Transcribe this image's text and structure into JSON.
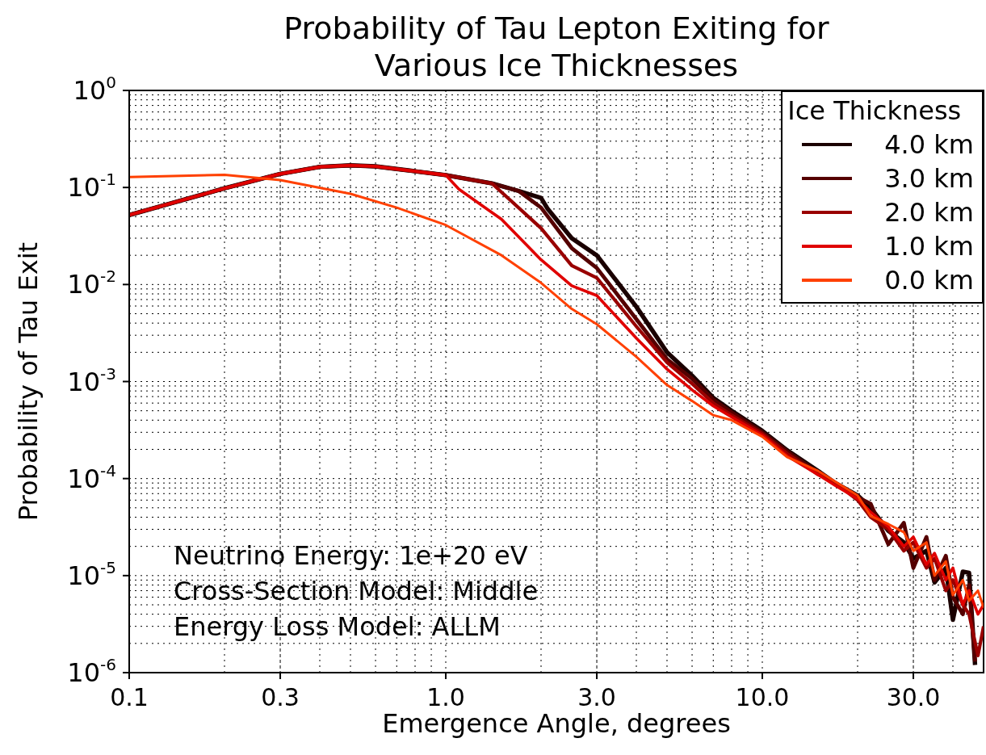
{
  "chart_data": {
    "type": "line",
    "title": "Probability of Tau Lepton Exiting for\nVarious Ice Thicknesses",
    "xlabel": "Emergence Angle, degrees",
    "ylabel": "Probability of Tau Exit",
    "legend_title": "Ice Thickness",
    "log": "xy",
    "grid": true,
    "legend": "top right",
    "line_style": "solid",
    "marker": "none",
    "xlim": [
      0.1,
      50
    ],
    "xticks": [
      {
        "value": 0.1,
        "label": "0.1"
      },
      {
        "value": 0.3,
        "label": "0.3"
      },
      {
        "value": 1,
        "label": "1.0"
      },
      {
        "value": 3,
        "label": "3.0"
      },
      {
        "value": 10,
        "label": "10.0"
      },
      {
        "value": 30,
        "label": "30.0"
      }
    ],
    "ylim": [
      1e-06,
      1
    ],
    "yticks": [
      {
        "value": 1,
        "label": "10$^{0}$"
      },
      {
        "value": 0.1,
        "label": "10$^{-1}$"
      },
      {
        "value": 0.01,
        "label": "10$^{-2}$"
      },
      {
        "value": 0.001,
        "label": "10$^{-3}$"
      },
      {
        "value": 0.0001,
        "label": "10$^{-4}$"
      },
      {
        "value": 1e-05,
        "label": "10$^{-5}$"
      },
      {
        "value": 1e-06,
        "label": "10$^{-6}$"
      }
    ],
    "annotations": [
      "Neutrino Energy: 1e+20 eV",
      "Cross-Section Model: Middle",
      "Energy Loss Model: ALLM"
    ],
    "series": [
      {
        "name": "4.0 km",
        "color": "#1a0000",
        "x": [
          0.1,
          0.2,
          0.3,
          0.4,
          0.5,
          0.6,
          0.7,
          0.8,
          0.9,
          1.0,
          1.4,
          1.7,
          2.0,
          2.1,
          2.5,
          3,
          4,
          5,
          6,
          7,
          8,
          10,
          12,
          15,
          17,
          20,
          22,
          25,
          28,
          30,
          33,
          35,
          38,
          40,
          43,
          45,
          47
        ],
        "values": [
          0.052,
          0.098,
          0.138,
          0.163,
          0.169,
          0.165,
          0.155,
          0.147,
          0.14,
          0.134,
          0.11,
          0.092,
          0.078,
          0.06,
          0.03,
          0.02,
          0.0059,
          0.002,
          0.00115,
          0.00068,
          0.0005,
          0.00031,
          0.000195,
          0.00012,
          9e-05,
          6.7e-05,
          5e-05,
          2.9e-05,
          2.2e-05,
          1.5e-05,
          1.8e-05,
          8.5e-06,
          1.2e-05,
          3.5e-06,
          1.1e-05,
          1.07e-05,
          1.2e-06
        ]
      },
      {
        "name": "3.0 km",
        "color": "#550000",
        "x": [
          0.1,
          0.2,
          0.3,
          0.4,
          0.5,
          0.6,
          0.7,
          0.8,
          0.9,
          1.0,
          1.4,
          1.7,
          2.0,
          2.5,
          3,
          4,
          5,
          6,
          7,
          8,
          10,
          12,
          15,
          17,
          20,
          22,
          25,
          28,
          30,
          33,
          35,
          38,
          40,
          43,
          45,
          47
        ],
        "values": [
          0.052,
          0.098,
          0.138,
          0.163,
          0.169,
          0.165,
          0.155,
          0.147,
          0.14,
          0.134,
          0.11,
          0.092,
          0.062,
          0.0237,
          0.0148,
          0.0044,
          0.0017,
          0.00107,
          0.00065,
          0.00048,
          0.0003,
          0.00019,
          0.000115,
          8.8e-05,
          6.4e-05,
          5.5e-05,
          2.1e-05,
          3.5e-05,
          1.2e-05,
          2.5e-05,
          9e-06,
          1.6e-05,
          6e-06,
          4e-06,
          8e-06,
          1.3e-06
        ]
      },
      {
        "name": "2.0 km",
        "color": "#990000",
        "x": [
          0.1,
          0.2,
          0.3,
          0.4,
          0.5,
          0.6,
          0.7,
          0.8,
          0.9,
          1.0,
          1.4,
          2.0,
          2.5,
          3,
          4,
          5,
          6,
          7,
          8,
          10,
          12,
          15,
          17,
          20,
          22,
          25,
          28,
          30,
          33,
          35,
          38,
          40,
          43,
          45,
          48,
          50
        ],
        "values": [
          0.052,
          0.098,
          0.138,
          0.163,
          0.169,
          0.165,
          0.155,
          0.147,
          0.14,
          0.134,
          0.11,
          0.038,
          0.0157,
          0.0117,
          0.0037,
          0.00157,
          0.00095,
          0.0006,
          0.00045,
          0.00029,
          0.00018,
          0.00011,
          9e-05,
          6e-05,
          4e-05,
          3e-05,
          1.8e-05,
          2.2e-05,
          1.2e-05,
          1.5e-05,
          7e-06,
          9e-06,
          5e-06,
          4e-06,
          1.5e-06,
          3e-06
        ]
      },
      {
        "name": "1.0 km",
        "color": "#e00000",
        "x": [
          0.1,
          0.2,
          0.3,
          0.4,
          0.5,
          0.6,
          0.7,
          0.8,
          0.9,
          1.0,
          1.1,
          1.5,
          2.0,
          2.5,
          3,
          4,
          5,
          6,
          7,
          8,
          10,
          12,
          15,
          17,
          20,
          22,
          25,
          28,
          30,
          33,
          35,
          38,
          40,
          43,
          45,
          48,
          50
        ],
        "values": [
          0.052,
          0.098,
          0.138,
          0.163,
          0.169,
          0.165,
          0.155,
          0.147,
          0.14,
          0.134,
          0.096,
          0.047,
          0.018,
          0.0097,
          0.0077,
          0.0028,
          0.00134,
          0.00082,
          0.00056,
          0.00043,
          0.00028,
          0.00017,
          0.00011,
          8.5e-05,
          6.2e-05,
          4.5e-05,
          3.2e-05,
          2e-05,
          2.5e-05,
          1.3e-05,
          1.7e-05,
          9e-06,
          1.2e-05,
          5e-06,
          7e-06,
          4e-06,
          5e-06
        ]
      },
      {
        "name": "0.0 km",
        "color": "#ff4000",
        "x": [
          0.1,
          0.2,
          0.3,
          0.5,
          0.7,
          1.0,
          1.5,
          2,
          2.5,
          3,
          4,
          5,
          6,
          7,
          8,
          10,
          12,
          15,
          17,
          20,
          22,
          25,
          28,
          30,
          33,
          35,
          38,
          40,
          43,
          45,
          48,
          50
        ],
        "values": [
          0.128,
          0.135,
          0.119,
          0.086,
          0.062,
          0.041,
          0.02,
          0.0104,
          0.0056,
          0.0039,
          0.0018,
          0.00092,
          0.00063,
          0.00045,
          0.0004,
          0.00027,
          0.000166,
          0.00012,
          9.3e-05,
          6.7e-05,
          4.1e-05,
          3.4e-05,
          2.8e-05,
          1.8e-05,
          2.2e-05,
          1e-05,
          1.4e-05,
          6.3e-06,
          9e-06,
          5.5e-06,
          7e-06,
          4.7e-06
        ]
      }
    ]
  }
}
